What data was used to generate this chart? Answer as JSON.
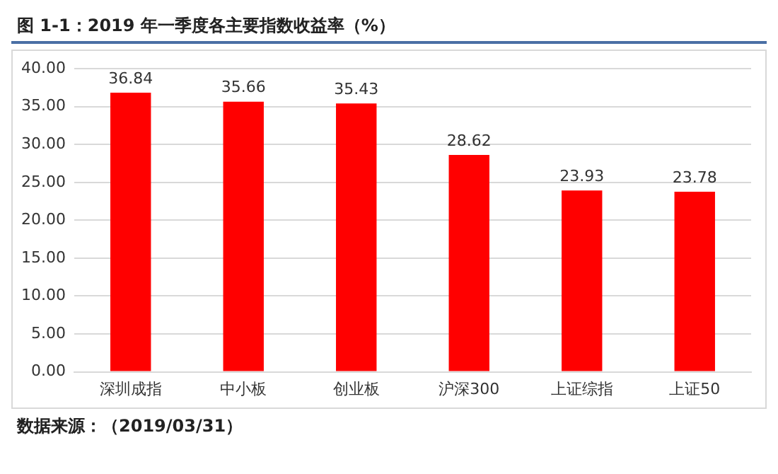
{
  "chart_data": {
    "type": "bar",
    "title": "图 1-1：2019 年一季度各主要指数收益率（%）",
    "categories": [
      "深圳成指",
      "中小板",
      "创业板",
      "沪深300",
      "上证综指",
      "上证50"
    ],
    "values": [
      36.84,
      35.66,
      35.43,
      28.62,
      23.93,
      23.78
    ],
    "color": "#ff0000",
    "ylim": [
      0,
      40
    ],
    "yticks": [
      {
        "value": 0,
        "label": "0.00"
      },
      {
        "value": 5,
        "label": "5.00"
      },
      {
        "value": 10,
        "label": "10.00"
      },
      {
        "value": 15,
        "label": "15.00"
      },
      {
        "value": 20,
        "label": "20.00"
      },
      {
        "value": 25,
        "label": "25.00"
      },
      {
        "value": 30,
        "label": "30.00"
      },
      {
        "value": 35,
        "label": "35.00"
      },
      {
        "value": 40,
        "label": "40.00"
      }
    ],
    "grid": "y",
    "data_labels": true,
    "legend": false,
    "annotations": [
      "数据来源：（2019/03/31）"
    ]
  }
}
